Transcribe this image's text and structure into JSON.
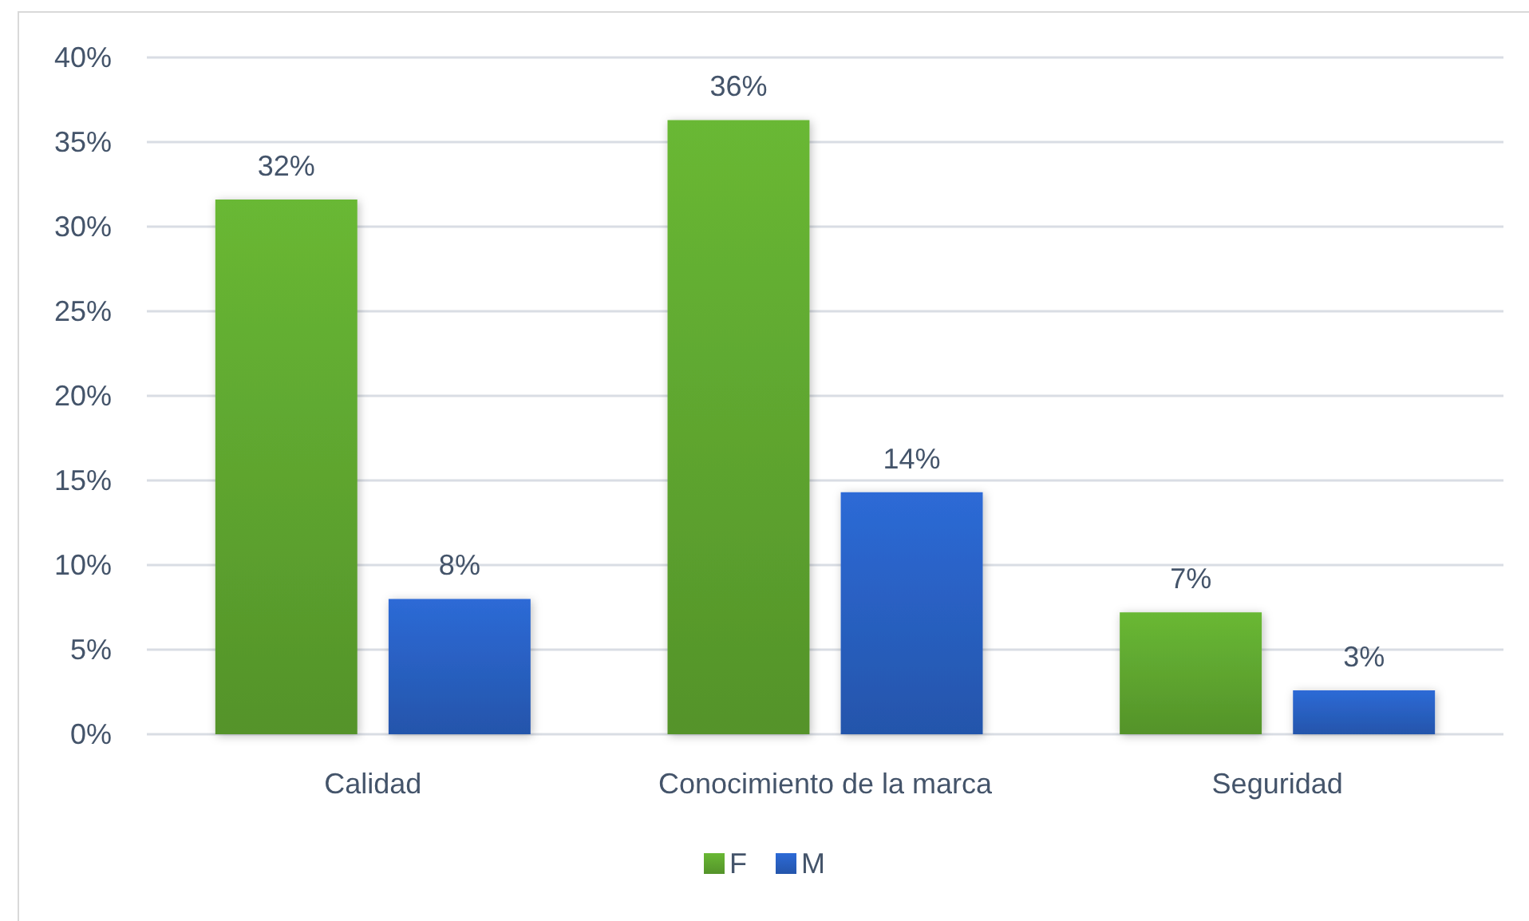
{
  "chart_data": {
    "type": "bar",
    "categories": [
      "Calidad",
      "Conocimiento de la marca",
      "Seguridad"
    ],
    "series": [
      {
        "name": "F",
        "color": "#69b834",
        "values": [
          31.6,
          36.3,
          7.2
        ],
        "value_labels": [
          "32%",
          "36%",
          "7%"
        ]
      },
      {
        "name": "M",
        "color": "#2d6ad6",
        "values": [
          8.0,
          14.3,
          2.6
        ],
        "value_labels": [
          "8%",
          "14%",
          "3%"
        ]
      }
    ],
    "ylim": [
      0,
      40
    ],
    "yticks": [
      {
        "value": 0,
        "label": "0%"
      },
      {
        "value": 5,
        "label": "5%"
      },
      {
        "value": 10,
        "label": "10%"
      },
      {
        "value": 15,
        "label": "15%"
      },
      {
        "value": 20,
        "label": "20%"
      },
      {
        "value": 25,
        "label": "25%"
      },
      {
        "value": 30,
        "label": "30%"
      },
      {
        "value": 35,
        "label": "35%"
      },
      {
        "value": 40,
        "label": "40%"
      }
    ],
    "grid": "y",
    "legend": "bottom"
  }
}
